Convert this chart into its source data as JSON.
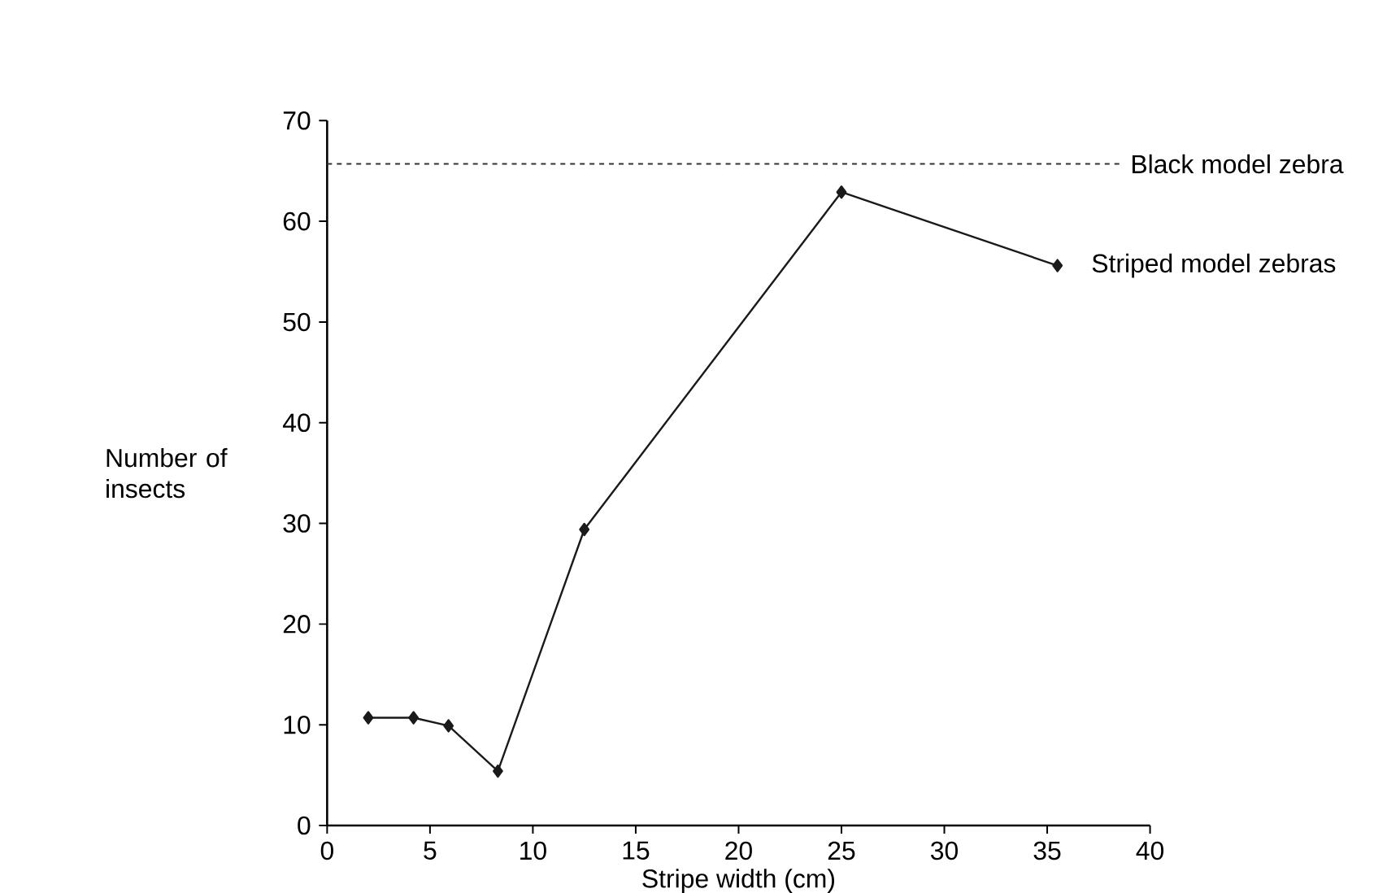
{
  "chart_data": {
    "type": "line",
    "xlabel": "Stripe width (cm)",
    "ylabel": "Number of insects",
    "xlim": [
      0,
      40
    ],
    "xticks": [
      0,
      5,
      10,
      15,
      20,
      25,
      30,
      35,
      40
    ],
    "ylim": [
      0,
      70
    ],
    "yticks": [
      0,
      10,
      20,
      30,
      40,
      50,
      60,
      70
    ],
    "series": [
      {
        "name": "Striped model zebras",
        "color": "#1a1a1a",
        "x": [
          2,
          4.2,
          5.9,
          8.3,
          12.5,
          25,
          35.5
        ],
        "values": [
          10.7,
          10.7,
          9.9,
          5.4,
          29.4,
          62.9,
          55.6
        ]
      }
    ],
    "ref_lines": [
      {
        "axis": "y",
        "value": 65.7,
        "label": "Black model zebra",
        "line_style": "dashed",
        "color": "#333333"
      }
    ],
    "marker": "diamond",
    "line_style": "solid"
  }
}
